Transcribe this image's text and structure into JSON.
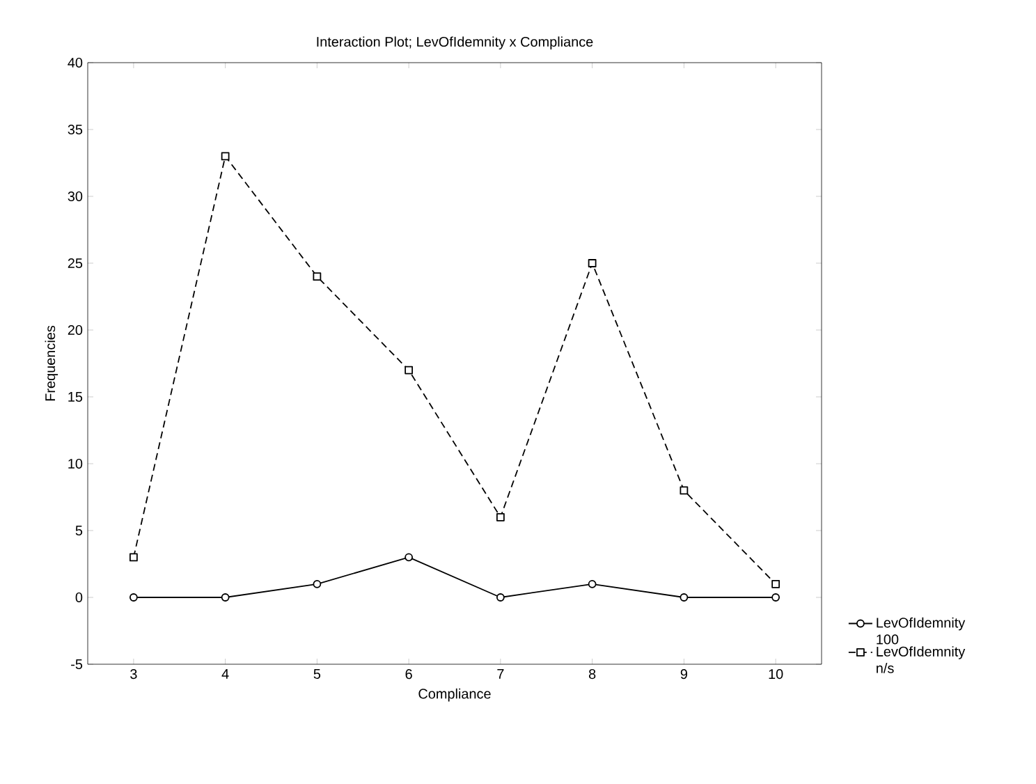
{
  "chart_data": {
    "type": "line",
    "title": "Interaction Plot; LevOfIdemnity x Compliance",
    "xlabel": "Compliance",
    "ylabel": "Frequencies",
    "x": [
      3,
      4,
      5,
      6,
      7,
      8,
      9,
      10
    ],
    "series": [
      {
        "name": "LevOfIdemnity 100",
        "color": "#000000",
        "values": [
          0,
          0,
          1,
          3,
          0,
          1,
          0,
          0
        ],
        "marker": "circle",
        "line_style": "solid"
      },
      {
        "name": "LevOfIdemnity n/s",
        "color": "#000000",
        "values": [
          3,
          33,
          24,
          17,
          6,
          25,
          8,
          1
        ],
        "marker": "square",
        "line_style": "dashed"
      }
    ],
    "xlim": [
      2.5,
      10.5
    ],
    "xticks": [
      3,
      4,
      5,
      6,
      7,
      8,
      9,
      10
    ],
    "ylim": [
      -5,
      40
    ],
    "yticks": [
      -5,
      0,
      5,
      10,
      15,
      20,
      25,
      30,
      35,
      40
    ],
    "grid": false,
    "legend": "bottom right"
  }
}
